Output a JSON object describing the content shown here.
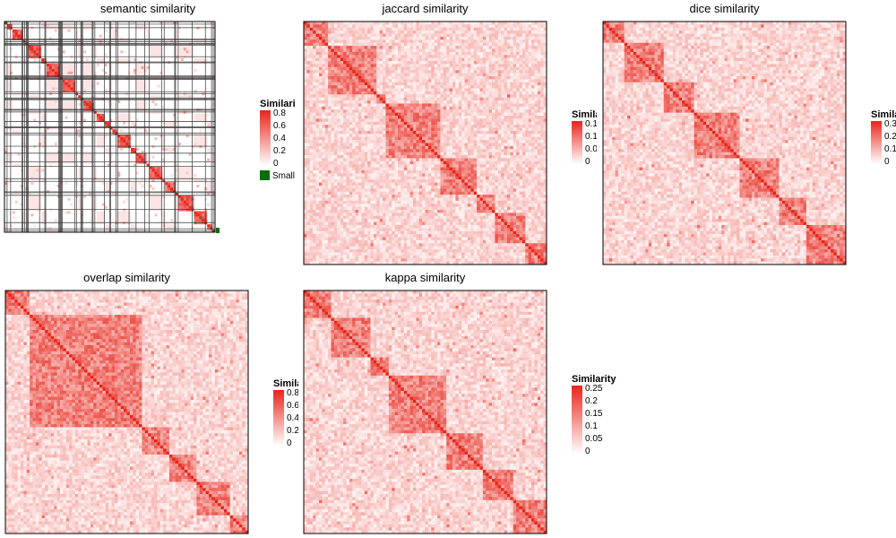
{
  "chart_data": [
    {
      "type": "heatmap",
      "title": "semantic similarity",
      "legend": {
        "title": "Similarity",
        "ticks": [
          "0.8",
          "0.6",
          "0.4",
          "0.2",
          "0"
        ],
        "extra_label": "Small"
      },
      "n": 240,
      "value_range": [
        0,
        0.8
      ],
      "grid": true,
      "legend_position": "right",
      "clusters": [
        3,
        4,
        13,
        1,
        2,
        2,
        1,
        1,
        13,
        6,
        1,
        15,
        1,
        1,
        1,
        1,
        14,
        2,
        5,
        1,
        1,
        11,
        1,
        2,
        11,
        6,
        1,
        6,
        2,
        13,
        8,
        10,
        5,
        14,
        3,
        12,
        1,
        3,
        16,
        15,
        7,
        2,
        2
      ],
      "color_range": [
        "#ffffff",
        "#e8251a"
      ]
    },
    {
      "type": "heatmap",
      "title": "jaccard similarity",
      "legend": {
        "title": "Similarity",
        "ticks": [
          "0.1",
          "0.1",
          "0.0",
          "0"
        ]
      },
      "n": 240,
      "value_range": [
        0,
        0.15
      ],
      "legend_position": "right",
      "clusters": [
        24,
        46,
        9,
        56,
        34,
        19,
        31,
        21
      ],
      "color_range": [
        "#ffffff",
        "#e8251a"
      ]
    },
    {
      "type": "heatmap",
      "title": "dice similarity",
      "legend": {
        "title": "Similarity",
        "ticks": [
          "0.3",
          "0.2",
          "0.1",
          "0"
        ]
      },
      "n": 240,
      "value_range": [
        0,
        0.3
      ],
      "legend_position": "right",
      "clusters": [
        19,
        41,
        29,
        46,
        38,
        27,
        40
      ],
      "color_range": [
        "#ffffff",
        "#e8251a"
      ]
    },
    {
      "type": "heatmap",
      "title": "overlap similarity",
      "legend": {
        "title": "Similarity",
        "ticks": [
          "0.8",
          "0.6",
          "0.4",
          "0.2",
          "0"
        ]
      },
      "n": 240,
      "value_range": [
        0,
        0.8
      ],
      "legend_position": "right",
      "clusters": [
        24,
        111,
        27,
        27,
        32,
        19
      ],
      "color_range": [
        "#ffffff",
        "#e8251a"
      ]
    },
    {
      "type": "heatmap",
      "title": "kappa similarity",
      "legend": {
        "title": "Similarity",
        "ticks": [
          "0.25",
          "0.2",
          "0.15",
          "0.1",
          "0.05",
          "0"
        ]
      },
      "n": 240,
      "value_range": [
        0,
        0.25
      ],
      "legend_position": "right",
      "clusters": [
        26,
        40,
        18,
        57,
        35,
        29,
        35
      ],
      "color_range": [
        "#ffffff",
        "#e8251a"
      ]
    }
  ]
}
